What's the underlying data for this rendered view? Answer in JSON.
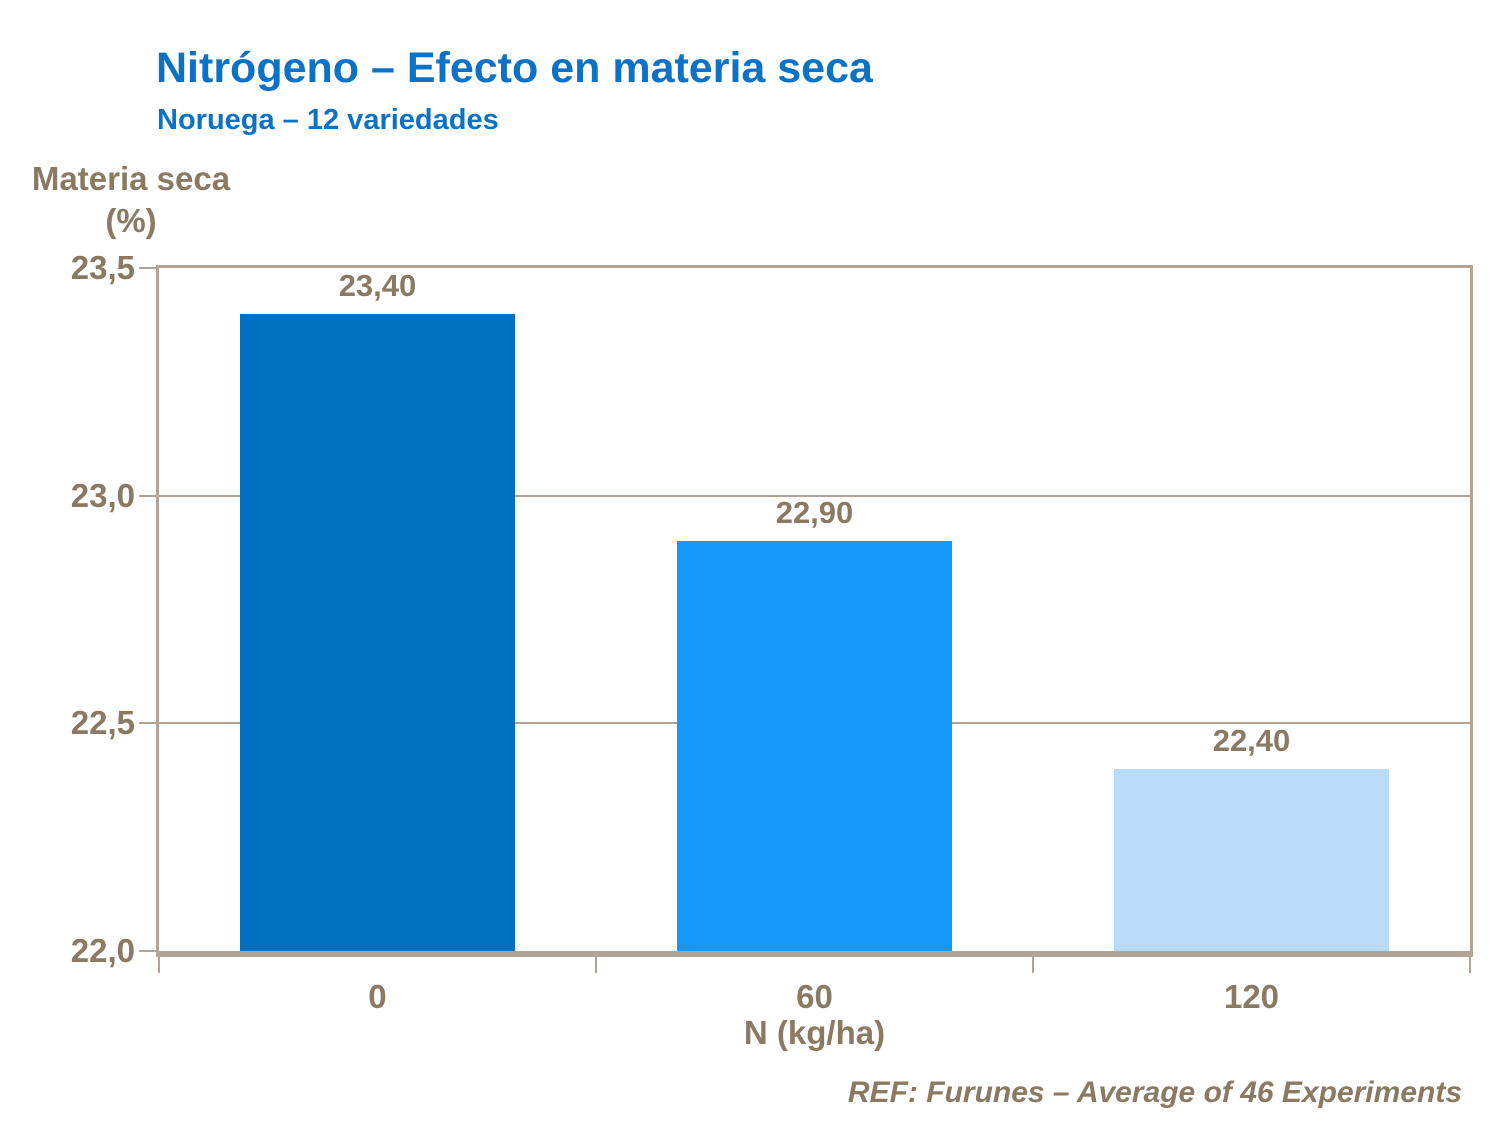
{
  "slide": {
    "title": "Nitrógeno – Efecto en materia seca",
    "subtitle": "Noruega – 12 variedades",
    "footer": "REF: Furunes – Average of 46 Experiments"
  },
  "colors": {
    "title_blue": "#0B72C6",
    "text_brown": "#8A7A63",
    "axis_tan": "#B2A494",
    "bar_colors": [
      "#0070C0",
      "#1499FA",
      "#B9DCFA"
    ]
  },
  "chart_data": {
    "type": "bar",
    "title": "Nitrógeno – Efecto en materia seca",
    "subtitle": "Noruega – 12 variedades",
    "categories": [
      "0",
      "60",
      "120"
    ],
    "values": [
      23.4,
      22.9,
      22.4
    ],
    "value_labels": [
      "23,40",
      "22,90",
      "22,40"
    ],
    "xlabel": "N (kg/ha)",
    "ylabel": "Materia seca (%)",
    "ylabel_lines": [
      "Materia seca",
      "(%)"
    ],
    "ylim": [
      22.0,
      23.5
    ],
    "yticks": [
      {
        "label": "23,5",
        "value": 23.5
      },
      {
        "label": "23,0",
        "value": 23.0
      },
      {
        "label": "22,5",
        "value": 22.5
      },
      {
        "label": "22,0",
        "value": 22.0
      }
    ],
    "gridlines": [
      23.0,
      22.5
    ],
    "grid": "horizontal",
    "legend": "none",
    "annotation": "REF: Furunes – Average of 46 Experiments"
  }
}
